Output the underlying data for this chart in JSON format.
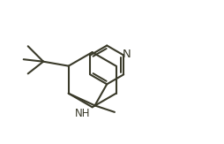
{
  "background": "#ffffff",
  "line_color": "#3a3a2a",
  "line_width": 1.5,
  "nh_font_size": 8.5,
  "n_font_size": 9.5,
  "figsize": [
    2.54,
    1.63
  ],
  "dpi": 100,
  "xlim": [
    0,
    10
  ],
  "ylim": [
    0,
    6.5
  ]
}
